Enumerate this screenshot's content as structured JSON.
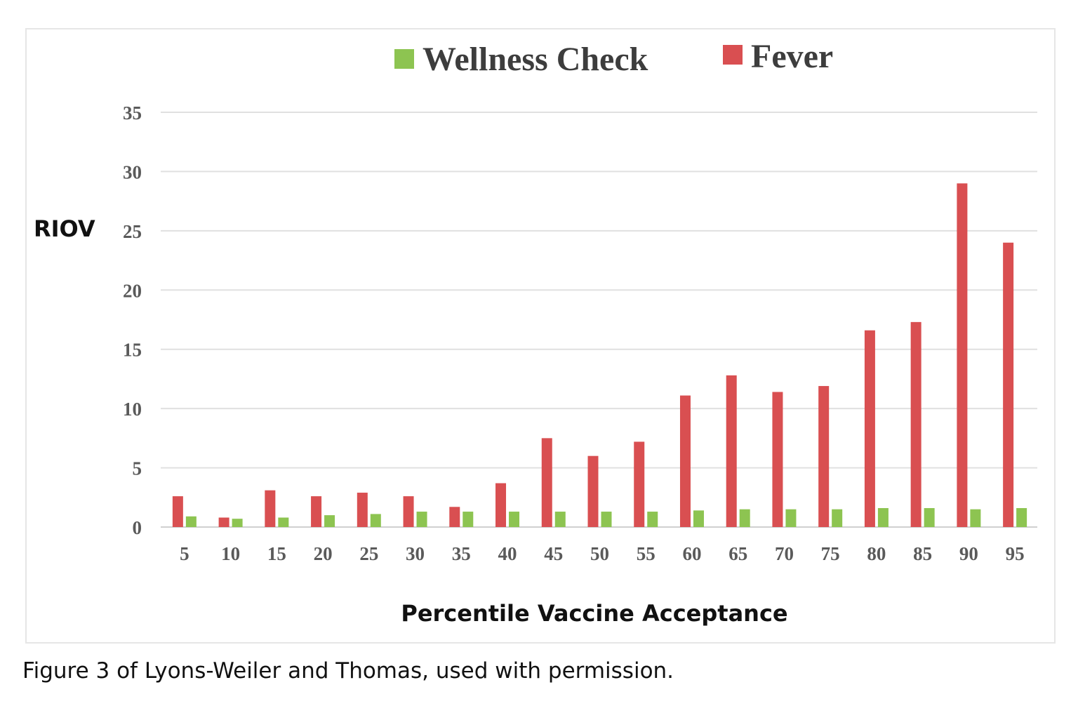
{
  "chart_data": {
    "type": "bar",
    "title": "",
    "xlabel": "Percentile Vaccine Acceptance",
    "ylabel": "RIOV",
    "ylim": [
      0,
      35
    ],
    "yticks": [
      0,
      5,
      10,
      15,
      20,
      25,
      30,
      35
    ],
    "grid": true,
    "legend_position": "top",
    "categories": [
      "5",
      "10",
      "15",
      "20",
      "25",
      "30",
      "35",
      "40",
      "45",
      "50",
      "55",
      "60",
      "65",
      "70",
      "75",
      "80",
      "85",
      "90",
      "95"
    ],
    "series": [
      {
        "name": "Fever",
        "color": "#d94f51",
        "values": [
          2.6,
          0.8,
          3.1,
          2.6,
          2.9,
          2.6,
          1.7,
          3.7,
          7.5,
          6.0,
          7.2,
          11.1,
          12.8,
          11.4,
          11.9,
          16.6,
          17.3,
          29.0,
          24.0
        ]
      },
      {
        "name": "Wellness Check",
        "color": "#8dc451",
        "values": [
          0.9,
          0.7,
          0.8,
          1.0,
          1.1,
          1.3,
          1.3,
          1.3,
          1.3,
          1.3,
          1.3,
          1.4,
          1.5,
          1.5,
          1.5,
          1.6,
          1.6,
          1.5,
          1.6
        ]
      }
    ]
  },
  "legend": {
    "wellness_label": "Wellness Check",
    "fever_label": "Fever"
  },
  "caption": "Figure 3 of Lyons-Weiler and Thomas, used with permission."
}
